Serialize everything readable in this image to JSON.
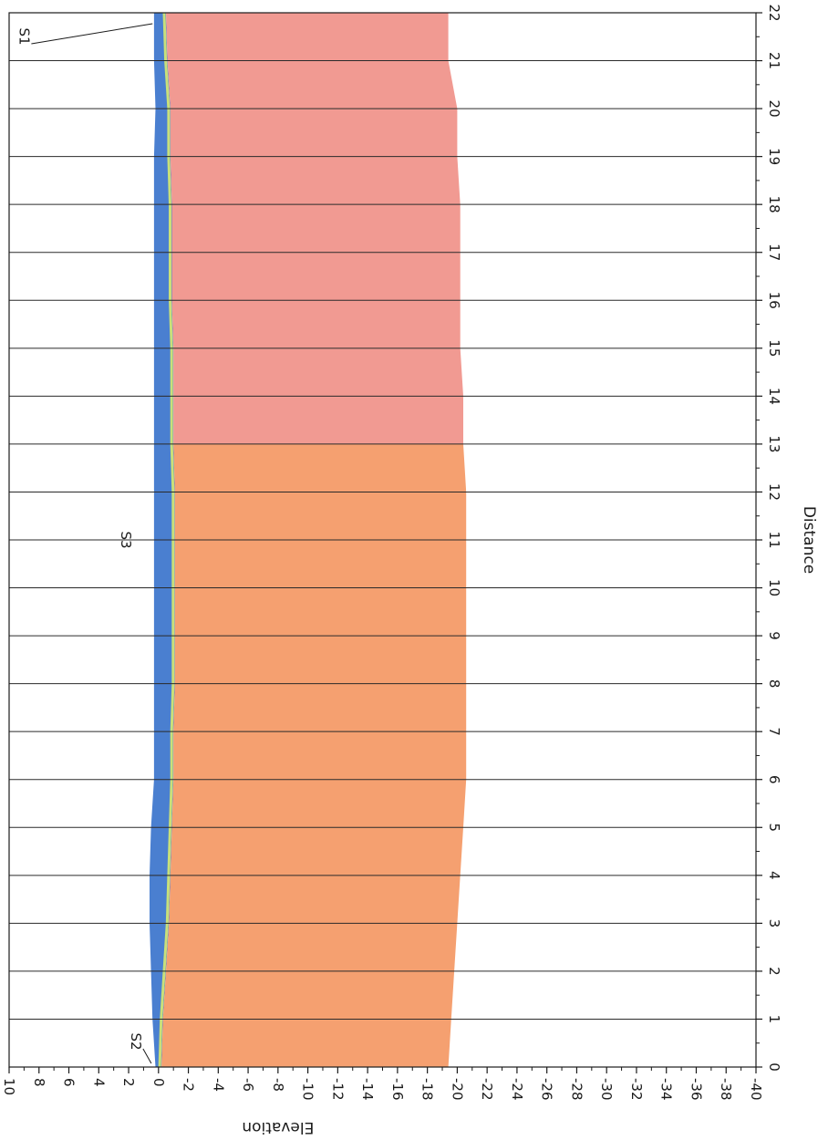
{
  "chart_data": {
    "type": "area",
    "orientation": "rotated-90-clockwise",
    "xlabel": "Distance",
    "ylabel": "Elevation",
    "xlim": [
      0,
      22
    ],
    "ylim": [
      -40,
      10
    ],
    "x_ticks": [
      0,
      1,
      2,
      3,
      4,
      5,
      6,
      7,
      8,
      9,
      10,
      11,
      12,
      13,
      14,
      15,
      16,
      17,
      18,
      19,
      20,
      21,
      22
    ],
    "y_ticks": [
      10,
      8,
      6,
      4,
      2,
      0,
      -2,
      -4,
      -6,
      -8,
      -10,
      -12,
      -14,
      -16,
      -18,
      -20,
      -22,
      -24,
      -26,
      -28,
      -30,
      -32,
      -34,
      -36,
      -38,
      -40
    ],
    "grid": "vertical-at-distance-ticks",
    "annotations": [
      {
        "text": "S2",
        "x": 0,
        "y": 0.3
      },
      {
        "text": "S3",
        "x": 11,
        "y": 2.2
      },
      {
        "text": "S1",
        "x": 22,
        "y": 9
      }
    ],
    "series": [
      {
        "color": "#4a7fd0",
        "x": [
          0,
          1,
          2,
          3,
          4,
          5,
          6,
          7,
          8,
          9,
          10,
          11,
          12,
          13,
          14,
          15,
          16,
          17,
          18,
          19,
          20,
          21,
          22
        ],
        "top": [
          0.2,
          0.4,
          0.5,
          0.6,
          0.6,
          0.5,
          0.3,
          0.3,
          0.3,
          0.3,
          0.3,
          0.3,
          0.3,
          0.3,
          0.3,
          0.3,
          0.3,
          0.3,
          0.3,
          0.3,
          0.2,
          0.3,
          0.3
        ],
        "bottom": [
          -0.2,
          -0.3,
          -0.5,
          -0.7,
          -0.8,
          -0.9,
          -1.0,
          -1.0,
          -1.1,
          -1.1,
          -1.1,
          -1.1,
          -1.1,
          -1.0,
          -1.0,
          -1.0,
          -0.9,
          -0.9,
          -0.9,
          -0.8,
          -0.8,
          -0.6,
          -0.5
        ]
      },
      {
        "color": "#f5a070",
        "x": [
          0,
          1,
          2,
          3,
          4,
          5,
          6,
          7,
          8,
          9,
          10,
          11,
          12,
          13
        ],
        "top": [
          -0.2,
          -0.3,
          -0.5,
          -0.7,
          -0.8,
          -0.9,
          -1.0,
          -1.0,
          -1.1,
          -1.1,
          -1.1,
          -1.1,
          -1.1,
          -1.0
        ],
        "bottom": [
          -19.4,
          -19.6,
          -19.8,
          -20.0,
          -20.2,
          -20.4,
          -20.6,
          -20.6,
          -20.6,
          -20.6,
          -20.6,
          -20.6,
          -20.6,
          -20.4
        ]
      },
      {
        "color": "#f19a92",
        "x": [
          13,
          14,
          15,
          16,
          17,
          18,
          19,
          20,
          21,
          22
        ],
        "top": [
          -1.0,
          -1.0,
          -1.0,
          -0.9,
          -0.9,
          -0.9,
          -0.8,
          -0.8,
          -0.6,
          -0.5
        ],
        "bottom": [
          -20.4,
          -20.4,
          -20.2,
          -20.2,
          -20.2,
          -20.2,
          -20.0,
          -20.0,
          -19.4,
          -19.4
        ]
      }
    ]
  }
}
